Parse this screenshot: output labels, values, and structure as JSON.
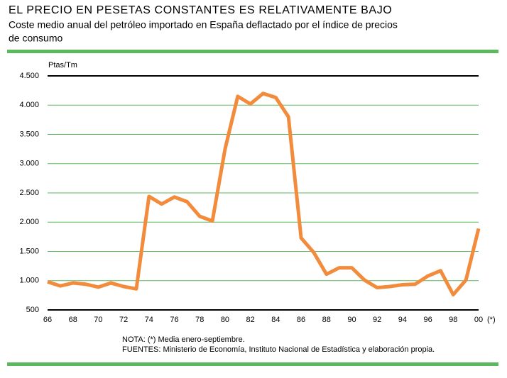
{
  "chart_data": {
    "type": "line",
    "title": "EL PRECIO EN PESETAS CONSTANTES ES RELATIVAMENTE BAJO",
    "subtitle": [
      "Coste medio anual del petróleo importado en España deflactado por el índice de precios",
      "de consumo"
    ],
    "y_unit": "Ptas/Tm",
    "categories": [
      "66",
      null,
      "68",
      null,
      "70",
      null,
      "72",
      null,
      "74",
      null,
      "76",
      null,
      "78",
      null,
      "80",
      null,
      "82",
      null,
      "84",
      null,
      "86",
      null,
      "88",
      null,
      "90",
      null,
      "92",
      null,
      "94",
      null,
      "96",
      null,
      "98",
      null,
      "00"
    ],
    "x_note": "(*)",
    "series": [
      {
        "name": "Ptas/Tm",
        "color": "#f28c3c",
        "values": [
          980,
          910,
          960,
          940,
          890,
          960,
          900,
          860,
          2440,
          2310,
          2430,
          2350,
          2100,
          2020,
          3250,
          4150,
          4020,
          4200,
          4130,
          3800,
          1730,
          1480,
          1110,
          1220,
          1220,
          1010,
          880,
          900,
          930,
          940,
          1080,
          1170,
          760,
          1010,
          1890
        ]
      }
    ],
    "ylim": [
      500,
      4500
    ],
    "yticks": [
      500,
      {
        "value": 1000,
        "label": "1.000"
      },
      {
        "value": 1500,
        "label": "1.500"
      },
      {
        "value": 2000,
        "label": "2.000"
      },
      {
        "value": 2500,
        "label": "2.500"
      },
      {
        "value": 3000,
        "label": "3.000"
      },
      {
        "value": 3500,
        "label": "3.500"
      },
      {
        "value": 4000,
        "label": "4.000"
      },
      {
        "value": 4500,
        "label": "4.500"
      }
    ],
    "grid": true,
    "notes": [
      "NOTA: (*) Media enero-septiembre.",
      "FUENTES: Ministerio de Economía, Instituto Nacional de Estadística y elaboración propia."
    ]
  }
}
